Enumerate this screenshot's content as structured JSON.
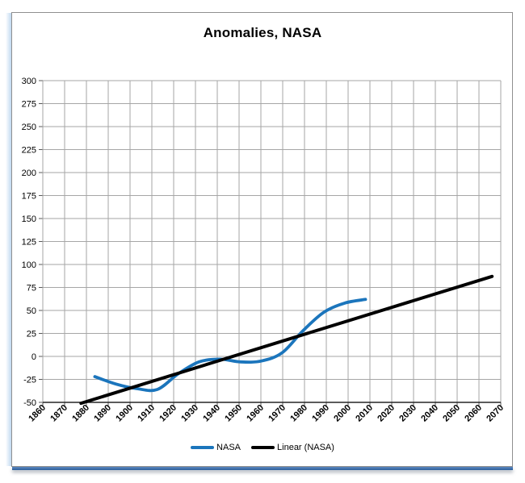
{
  "chart": {
    "title": "Anomalies, NASA",
    "legend": {
      "items": [
        {
          "label": "NASA",
          "color": "#1b75bc"
        },
        {
          "label": "Linear (NASA)",
          "color": "#000000"
        }
      ]
    }
  },
  "colors": {
    "series_nasa": "#1b75bc",
    "series_linear": "#000000",
    "gridline": "#a6a6a6",
    "axis_line": "#262626",
    "tick_mark": "#595959",
    "tick_label": "#000000",
    "frame_border": "#8f8f8f",
    "frame_bottom_edge": "#2e5f9b"
  },
  "chart_data": {
    "type": "line",
    "title": "Anomalies, NASA",
    "grid": true,
    "legend_position": "bottom",
    "xlim": [
      1860,
      2070
    ],
    "ylim": [
      -50,
      300
    ],
    "x_tick_labels": [
      1860,
      1870,
      1880,
      1890,
      1900,
      1910,
      1920,
      1930,
      1940,
      1950,
      1960,
      1970,
      1980,
      1990,
      2000,
      2010,
      2020,
      2030,
      2040,
      2050,
      2060,
      2070
    ],
    "y_tick_labels": [
      300,
      275,
      250,
      225,
      200,
      175,
      150,
      125,
      100,
      75,
      50,
      25,
      0,
      -25,
      -50
    ],
    "series": [
      {
        "name": "NASA",
        "color": "#1b75bc",
        "style": "smooth_line",
        "x_placement": "between_ticks",
        "points": [
          [
            1880,
            -22
          ],
          [
            1890,
            -30
          ],
          [
            1900,
            -35
          ],
          [
            1910,
            -36
          ],
          [
            1920,
            -19
          ],
          [
            1930,
            -6
          ],
          [
            1940,
            -3
          ],
          [
            1950,
            -6
          ],
          [
            1960,
            -5
          ],
          [
            1970,
            4
          ],
          [
            1980,
            28
          ],
          [
            1990,
            48
          ],
          [
            2000,
            58
          ],
          [
            2010,
            62
          ]
        ]
      },
      {
        "name": "Linear (NASA)",
        "color": "#000000",
        "style": "straight_line",
        "x_placement": "on_ticks",
        "points": [
          [
            1877.5,
            -51
          ],
          [
            2066,
            87
          ]
        ]
      }
    ]
  }
}
